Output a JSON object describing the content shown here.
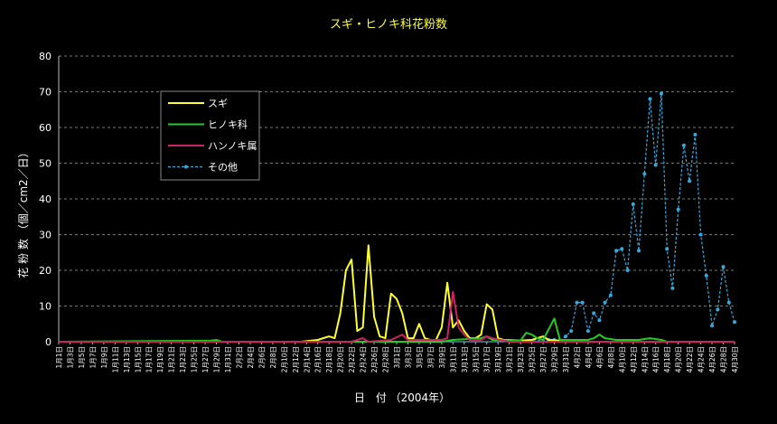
{
  "chart_data": {
    "type": "line",
    "title": "スギ・ヒノキ科花粉数",
    "xlabel": "日　付 （2004年）",
    "ylabel": "花 粉 数 （個／cm2／日）",
    "ylim": [
      0,
      80
    ],
    "yticks": [
      0,
      10,
      20,
      30,
      40,
      50,
      60,
      70,
      80
    ],
    "grid": true,
    "legend_position": "upper-left",
    "x_tick_labels": [
      "1月1日",
      "1月3日",
      "1月5日",
      "1月7日",
      "1月9日",
      "1月11日",
      "1月13日",
      "1月15日",
      "1月17日",
      "1月19日",
      "1月21日",
      "1月23日",
      "1月25日",
      "1月27日",
      "1月29日",
      "1月31日",
      "2月2日",
      "2月4日",
      "2月6日",
      "2月8日",
      "2月10日",
      "2月12日",
      "2月14日",
      "2月16日",
      "2月18日",
      "2月20日",
      "2月22日",
      "2月24日",
      "2月26日",
      "2月28日",
      "3月1日",
      "3月3日",
      "3月5日",
      "3月7日",
      "3月9日",
      "3月11日",
      "3月13日",
      "3月15日",
      "3月17日",
      "3月19日",
      "3月21日",
      "3月23日",
      "3月25日",
      "3月27日",
      "3月29日",
      "3月31日",
      "4月2日",
      "4月4日",
      "4月6日",
      "4月8日",
      "4月10日",
      "4月12日",
      "4月14日",
      "4月16日",
      "4月18日",
      "4月20日",
      "4月22日",
      "4月24日",
      "4月26日",
      "4月28日",
      "4月30日"
    ],
    "series": [
      {
        "name": "スギ",
        "color": "#ffff33",
        "style": "solid",
        "points": [
          [
            "1月1日",
            0
          ],
          [
            "2月13日",
            0
          ],
          [
            "2月16日",
            0.5
          ],
          [
            "2月18日",
            1.5
          ],
          [
            "2月19日",
            1
          ],
          [
            "2月20日",
            8
          ],
          [
            "2月21日",
            20
          ],
          [
            "2月22日",
            23
          ],
          [
            "2月23日",
            3
          ],
          [
            "2月24日",
            4
          ],
          [
            "2月25日",
            27
          ],
          [
            "2月26日",
            7
          ],
          [
            "2月27日",
            1.5
          ],
          [
            "2月28日",
            1
          ],
          [
            "2月29日",
            13.5
          ],
          [
            "3月1日",
            12
          ],
          [
            "3月2日",
            8
          ],
          [
            "3月3日",
            1
          ],
          [
            "3月4日",
            1
          ],
          [
            "3月5日",
            5
          ],
          [
            "3月6日",
            1
          ],
          [
            "3月7日",
            0.5
          ],
          [
            "3月8日",
            0.5
          ],
          [
            "3月9日",
            4
          ],
          [
            "3月10日",
            16.5
          ],
          [
            "3月11日",
            4
          ],
          [
            "3月12日",
            6
          ],
          [
            "3月13日",
            3
          ],
          [
            "3月14日",
            1
          ],
          [
            "3月15日",
            1
          ],
          [
            "3月16日",
            2
          ],
          [
            "3月17日",
            10.5
          ],
          [
            "3月18日",
            9
          ],
          [
            "3月19日",
            1
          ],
          [
            "3月20日",
            0.5
          ],
          [
            "3月21日",
            0.5
          ],
          [
            "3月23日",
            0.3
          ],
          [
            "3月25日",
            0.5
          ],
          [
            "3月27日",
            1.5
          ],
          [
            "3月28日",
            0.5
          ],
          [
            "3月30日",
            0.3
          ],
          [
            "4月1日",
            0
          ]
        ]
      },
      {
        "name": "ヒノキ科",
        "color": "#22cc22",
        "style": "solid",
        "points": [
          [
            "1月1日",
            0
          ],
          [
            "1月28日",
            0.3
          ],
          [
            "1月29日",
            0.5
          ],
          [
            "1月30日",
            0
          ],
          [
            "3月9日",
            0
          ],
          [
            "3月11日",
            0.5
          ],
          [
            "3月16日",
            1
          ],
          [
            "3月17日",
            1.5
          ],
          [
            "3月18日",
            0.5
          ],
          [
            "3月23日",
            0.3
          ],
          [
            "3月24日",
            2.5
          ],
          [
            "3月25日",
            2
          ],
          [
            "3月26日",
            1
          ],
          [
            "3月27日",
            0.5
          ],
          [
            "3月29日",
            6.5
          ],
          [
            "3月30日",
            0.5
          ],
          [
            "4月1日",
            0.5
          ],
          [
            "4月4日",
            0.5
          ],
          [
            "4月5日",
            1
          ],
          [
            "4月6日",
            2
          ],
          [
            "4月7日",
            1
          ],
          [
            "4月9日",
            0.5
          ],
          [
            "4月13日",
            0.5
          ],
          [
            "4月15日",
            1
          ],
          [
            "4月17日",
            0.5
          ],
          [
            "4月18日",
            0
          ]
        ]
      },
      {
        "name": "ハンノキ属",
        "color": "#cc2266",
        "style": "solid",
        "points": [
          [
            "1月1日",
            0
          ],
          [
            "2月22日",
            0
          ],
          [
            "2月24日",
            1
          ],
          [
            "2月25日",
            0
          ],
          [
            "2月29日",
            0.5
          ],
          [
            "3月2日",
            2
          ],
          [
            "3月3日",
            0.5
          ],
          [
            "3月9日",
            0.5
          ],
          [
            "3月10日",
            1
          ],
          [
            "3月11日",
            14
          ],
          [
            "3月12日",
            4
          ],
          [
            "3月13日",
            2
          ],
          [
            "3月14日",
            0.5
          ],
          [
            "3月16日",
            0.5
          ],
          [
            "3月17日",
            1.5
          ],
          [
            "3月18日",
            1
          ],
          [
            "3月20日",
            0.3
          ],
          [
            "3月21日",
            0
          ],
          [
            "4月30日",
            0
          ]
        ]
      },
      {
        "name": "その他",
        "color": "#33aadd",
        "style": "dotted",
        "points": [
          [
            "1月1日",
            0
          ],
          [
            "3月23日",
            0
          ],
          [
            "3月28日",
            0.5
          ],
          [
            "3月29日",
            0.5
          ],
          [
            "3月30日",
            0.3
          ],
          [
            "3月31日",
            1.5
          ],
          [
            "4月1日",
            3
          ],
          [
            "4月2日",
            11
          ],
          [
            "4月3日",
            11
          ],
          [
            "4月4日",
            3
          ],
          [
            "4月5日",
            8
          ],
          [
            "4月6日",
            6
          ],
          [
            "4月7日",
            11
          ],
          [
            "4月8日",
            13
          ],
          [
            "4月9日",
            25.5
          ],
          [
            "4月10日",
            26
          ],
          [
            "4月11日",
            20
          ],
          [
            "4月12日",
            38.5
          ],
          [
            "4月13日",
            25.5
          ],
          [
            "4月14日",
            47
          ],
          [
            "4月15日",
            68
          ],
          [
            "4月16日",
            49.5
          ],
          [
            "4月17日",
            69.5
          ],
          [
            "4月18日",
            26
          ],
          [
            "4月19日",
            15
          ],
          [
            "4月20日",
            37
          ],
          [
            "4月21日",
            55
          ],
          [
            "4月22日",
            45
          ],
          [
            "4月23日",
            58
          ],
          [
            "4月24日",
            30
          ],
          [
            "4月25日",
            18.5
          ],
          [
            "4月26日",
            4.5
          ],
          [
            "4月27日",
            9
          ],
          [
            "4月28日",
            21
          ],
          [
            "4月29日",
            11
          ],
          [
            "4月30日",
            5.5
          ]
        ]
      }
    ]
  }
}
